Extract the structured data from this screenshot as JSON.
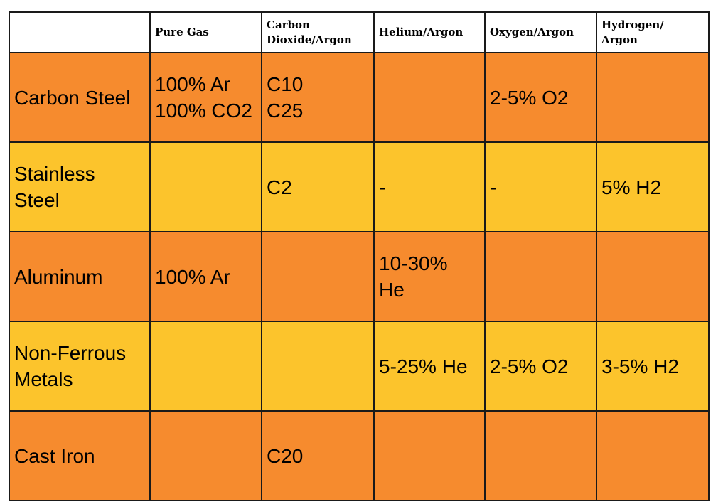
{
  "header": {
    "corner": "",
    "columns": [
      "Pure Gas",
      "Carbon\nDioxide/Argon",
      "Helium/Argon",
      "Oxygen/Argon",
      "Hydrogen/\nArgon"
    ]
  },
  "colors": {
    "orange_row": "#f68b2e",
    "yellow_row": "#fcc42c",
    "border": "#1a1a1a",
    "header_bg": "#ffffff"
  },
  "rows": [
    {
      "label": "Carbon Steel",
      "pure_gas": "100% Ar\n100% CO2",
      "co2_argon": "C10\nC25",
      "helium_argon": "",
      "oxygen_argon": "2-5% O2",
      "hydrogen_argon": ""
    },
    {
      "label": "Stainless\nSteel",
      "pure_gas": "",
      "co2_argon": "C2",
      "helium_argon": "-",
      "oxygen_argon": "-",
      "hydrogen_argon": "5% H2"
    },
    {
      "label": "Aluminum",
      "pure_gas": "100% Ar",
      "co2_argon": "",
      "helium_argon": "10-30%\nHe",
      "oxygen_argon": "",
      "hydrogen_argon": ""
    },
    {
      "label": "Non-Ferrous\nMetals",
      "pure_gas": "",
      "co2_argon": "",
      "helium_argon": "5-25% He",
      "oxygen_argon": "2-5% O2",
      "hydrogen_argon": "3-5% H2"
    },
    {
      "label": "Cast Iron",
      "pure_gas": "",
      "co2_argon": "C20",
      "helium_argon": "",
      "oxygen_argon": "",
      "hydrogen_argon": ""
    }
  ]
}
